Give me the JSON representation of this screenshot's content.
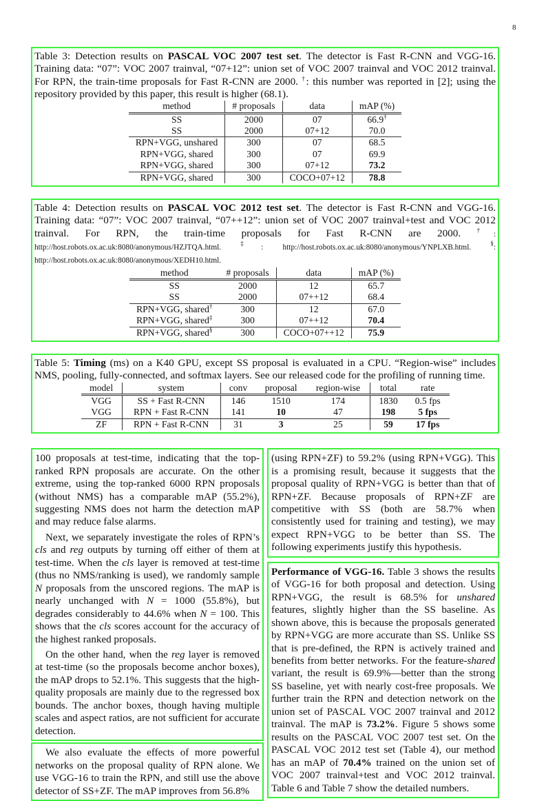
{
  "page_number": "8",
  "colors": {
    "box": "#3cf03c"
  },
  "table3": {
    "caption": [
      {
        "t": "Table 3: Detection results on "
      },
      {
        "t": "PASCAL VOC 2007 test set",
        "s": "b"
      },
      {
        "t": ". The detector is Fast R-CNN and VGG-16. Training data: “07”: VOC 2007 trainval, “07+12”: union set of VOC 2007 trainval and VOC 2012 trainval. For RPN, the train-time proposals for Fast R-CNN are 2000. "
      },
      {
        "t": "†",
        "s": "sup"
      },
      {
        "t": ": this number was reported in [2]; using the repository provided by this paper, this result is higher (68.1)."
      }
    ],
    "headers": [
      "method",
      "# proposals",
      "data",
      "mAP (%)"
    ],
    "rows": [
      {
        "cells": [
          "SS",
          "2000",
          "07",
          "66.9"
        ],
        "sup": "†",
        "bold": [],
        "grp": false
      },
      {
        "cells": [
          "SS",
          "2000",
          "07+12",
          "70.0"
        ],
        "bold": [],
        "grp": false
      },
      {
        "cells": [
          "RPN+VGG, unshared",
          "300",
          "07",
          "68.5"
        ],
        "bold": [],
        "grp": true
      },
      {
        "cells": [
          "RPN+VGG, shared",
          "300",
          "07",
          "69.9"
        ],
        "bold": [],
        "grp": false
      },
      {
        "cells": [
          "RPN+VGG, shared",
          "300",
          "07+12",
          "73.2"
        ],
        "bold": [
          3
        ],
        "grp": false
      },
      {
        "cells": [
          "RPN+VGG, shared",
          "300",
          "COCO+07+12",
          "78.8"
        ],
        "bold": [
          3
        ],
        "grp": true
      }
    ]
  },
  "table4": {
    "caption": [
      {
        "t": "Table 4: Detection results on "
      },
      {
        "t": "PASCAL VOC 2012 test set",
        "s": "b"
      },
      {
        "t": ". The detector is Fast R-CNN and VGG-16. Training data: “07”: VOC 2007 trainval, “07++12”: union set of VOC 2007 trainval+test and VOC 2012 trainval. For RPN, the train-time proposals for Fast R-CNN are 2000. "
      },
      {
        "t": "†",
        "s": "sup"
      },
      {
        "t": ": http://host.robots.ox.ac.uk:8080/anonymous/HZJTQA.html. ",
        "s": "small"
      },
      {
        "t": "‡",
        "s": "sup"
      },
      {
        "t": ": http://host.robots.ox.ac.uk:8080/anonymous/YNPLXB.html. ",
        "s": "small"
      },
      {
        "t": "§",
        "s": "sup"
      },
      {
        "t": ": http://host.robots.ox.ac.uk:8080/anonymous/XEDH10.html.",
        "s": "small"
      }
    ],
    "headers": [
      "method",
      "# proposals",
      "data",
      "mAP (%)"
    ],
    "rows": [
      {
        "cells": [
          "SS",
          "2000",
          "12",
          "65.7"
        ],
        "bold": [],
        "grp": false
      },
      {
        "cells": [
          "SS",
          "2000",
          "07++12",
          "68.4"
        ],
        "bold": [],
        "grp": false
      },
      {
        "cells": [
          "RPN+VGG, shared",
          "300",
          "12",
          "67.0"
        ],
        "sup0": "†",
        "bold": [],
        "grp": true
      },
      {
        "cells": [
          "RPN+VGG, shared",
          "300",
          "07++12",
          "70.4"
        ],
        "sup0": "‡",
        "bold": [
          3
        ],
        "grp": false
      },
      {
        "cells": [
          "RPN+VGG, shared",
          "300",
          "COCO+07++12",
          "75.9"
        ],
        "sup0": "§",
        "bold": [
          3
        ],
        "grp": true
      }
    ]
  },
  "table5": {
    "caption": [
      {
        "t": "Table 5: "
      },
      {
        "t": "Timing",
        "s": "b"
      },
      {
        "t": " (ms) on a K40 GPU, except SS proposal is evaluated in a CPU. “Region-wise” includes NMS, pooling, fully-connected, and softmax layers. See our released code for the profiling of running time."
      }
    ],
    "headers": [
      "model",
      "system",
      "conv",
      "proposal",
      "region-wise",
      "total",
      "rate"
    ],
    "rows": [
      {
        "cells": [
          "VGG",
          "SS + Fast R-CNN",
          "146",
          "1510",
          "174",
          "1830",
          "0.5 fps"
        ],
        "bold": [],
        "grp": false
      },
      {
        "cells": [
          "VGG",
          "RPN + Fast R-CNN",
          "141",
          "10",
          "47",
          "198",
          "5 fps"
        ],
        "bold": [
          3,
          5,
          6
        ],
        "grp": false
      },
      {
        "cells": [
          "ZF",
          "RPN + Fast R-CNN",
          "31",
          "3",
          "25",
          "59",
          "17 fps"
        ],
        "bold": [
          3,
          5,
          6
        ],
        "grp": true
      }
    ]
  },
  "left_col": [
    {
      "ind": false,
      "segs": [
        {
          "t": "100 proposals at test-time, indicating that the top-ranked RPN proposals are accurate. On the other extreme, using the top-ranked 6000 RPN proposals (without NMS) has a comparable mAP (55.2%), suggesting NMS does not harm the detection mAP and may reduce false alarms."
        }
      ]
    },
    {
      "ind": true,
      "segs": [
        {
          "t": "Next, we separately investigate the roles of RPN’s "
        },
        {
          "t": "cls",
          "s": "i"
        },
        {
          "t": " and "
        },
        {
          "t": "reg",
          "s": "i"
        },
        {
          "t": " outputs by turning off either of them at test-time. When the "
        },
        {
          "t": "cls",
          "s": "i"
        },
        {
          "t": " layer is removed at test-time (thus no NMS/ranking is used), we randomly sample "
        },
        {
          "t": "N",
          "s": "i"
        },
        {
          "t": " proposals from the unscored regions. The mAP is nearly unchanged with "
        },
        {
          "t": "N",
          "s": "i"
        },
        {
          "t": " = 1000 (55.8%), but degrades considerably to 44.6% when "
        },
        {
          "t": "N",
          "s": "i"
        },
        {
          "t": " = 100. This shows that the "
        },
        {
          "t": "cls",
          "s": "i"
        },
        {
          "t": " scores account for the accuracy of the highest ranked proposals."
        }
      ]
    },
    {
      "ind": true,
      "segs": [
        {
          "t": "On the other hand, when the "
        },
        {
          "t": "reg",
          "s": "i"
        },
        {
          "t": " layer is removed at test-time (so the proposals become anchor boxes), the mAP drops to 52.1%. This suggests that the high-quality proposals are mainly due to the regressed box bounds. The anchor boxes, though having multiple scales and aspect ratios, are not sufficient for accurate detection."
        }
      ]
    }
  ],
  "left_col2": [
    {
      "ind": true,
      "segs": [
        {
          "t": "We also evaluate the effects of more powerful networks on the proposal quality of RPN alone. We use VGG-16 to train the RPN, and still use the above detector of SS+ZF. The mAP improves from 56.8%"
        }
      ]
    }
  ],
  "right_col": [
    {
      "ind": false,
      "segs": [
        {
          "t": "(using RPN+ZF) to 59.2% (using RPN+VGG). This is a promising result, because it suggests that the proposal quality of RPN+VGG is better than that of RPN+ZF. Because proposals of RPN+ZF are competitive with SS (both are 58.7% when consistently used for training and testing), we may expect RPN+VGG to be better than SS. The following experiments justify this hypothesis."
        }
      ]
    }
  ],
  "right_col2": [
    {
      "ind": false,
      "segs": [
        {
          "t": "Performance of VGG-16.",
          "s": "b"
        },
        {
          "t": " Table 3 shows the results of VGG-16 for both proposal and detection. Using RPN+VGG, the result is 68.5% for "
        },
        {
          "t": "unshared",
          "s": "i"
        },
        {
          "t": " features, slightly higher than the SS baseline. As shown above, this is because the proposals generated by RPN+VGG are more accurate than SS. Unlike SS that is pre-defined, the RPN is actively trained and benefits from better networks. For the feature-"
        },
        {
          "t": "shared",
          "s": "i"
        },
        {
          "t": " variant, the result is 69.9%—better than the strong SS baseline, yet with nearly cost-free proposals. We further train the RPN and detection network on the union set of PASCAL VOC 2007 trainval and 2012 trainval. The mAP is "
        },
        {
          "t": "73.2%",
          "s": "b"
        },
        {
          "t": ". Figure 5 shows some results on the PASCAL VOC 2007 test set. On the PASCAL VOC 2012 test set (Table 4), our method has an mAP of "
        },
        {
          "t": "70.4%",
          "s": "b"
        },
        {
          "t": " trained on the union set of VOC 2007 trainval+test and VOC 2012 trainval. Table 6 and Table 7 show the detailed numbers."
        }
      ]
    }
  ]
}
